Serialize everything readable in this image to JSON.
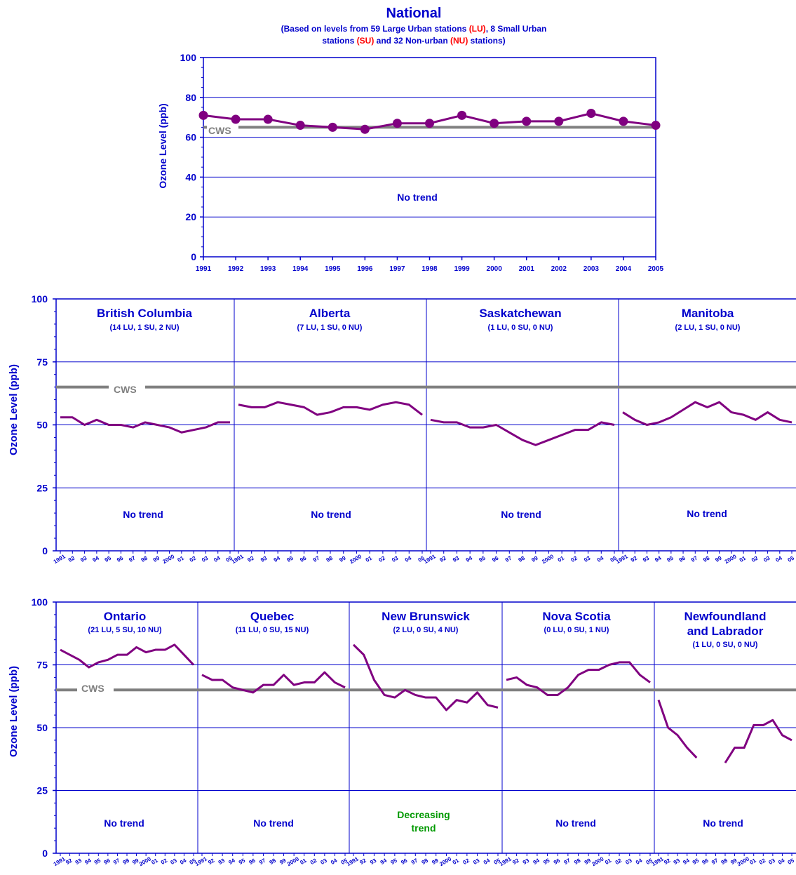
{
  "national": {
    "title": "National",
    "subtitle_1": {
      "p1": "(Based on levels from 59 Large Urban stations ",
      "p2": "(LU)",
      "p3": ", 8 Small Urban"
    },
    "subtitle_2": {
      "p1": "stations ",
      "p2": "(SU)",
      "p3": " and 32 Non-urban ",
      "p4": "(NU)",
      "p5": " stations)"
    }
  },
  "cws_label": "CWS",
  "trend_labels": {
    "no_trend": "No  trend",
    "decreasing_1": "Decreasing",
    "decreasing_2": "trend"
  },
  "y_axis_label": "Ozone Level (ppb)",
  "colors": {
    "axis": "#0000cc",
    "line": "#800080",
    "cws": "#808080",
    "subset": "#ff0000",
    "decreasing": "#009900"
  },
  "chart_data": [
    {
      "type": "line",
      "id": "national",
      "title": "National",
      "ylabel": "Ozone Level (ppb)",
      "ylim": [
        0,
        100
      ],
      "y_ticks": [
        "0",
        "20",
        "40",
        "60",
        "80",
        "100"
      ],
      "x": [
        "1991",
        "1992",
        "1993",
        "1994",
        "1995",
        "1996",
        "1997",
        "1998",
        "1999",
        "2000",
        "2001",
        "2002",
        "2003",
        "2004",
        "2005"
      ],
      "values": [
        71,
        69,
        69,
        66,
        65,
        64,
        67,
        67,
        71,
        67,
        68,
        68,
        72,
        68,
        66
      ],
      "markers": true,
      "cws": 65,
      "annotation": "No  trend",
      "grid": true
    },
    {
      "type": "line",
      "id": "western_provinces",
      "ylabel": "Ozone Level (ppb)",
      "ylim": [
        0,
        100
      ],
      "y_ticks": [
        "0",
        "25",
        "50",
        "75",
        "100"
      ],
      "x_ticks": [
        "1991",
        "92",
        "93",
        "94",
        "95",
        "96",
        "97",
        "98",
        "99",
        "2000",
        "01",
        "02",
        "03",
        "04",
        "05"
      ],
      "cws": 65,
      "grid": true,
      "panels": [
        {
          "name": "British Columbia",
          "stations": "(14 LU, 1 SU, 2 NU)",
          "trend": "No  trend",
          "values": [
            53,
            53,
            50,
            52,
            50,
            50,
            49,
            51,
            50,
            49,
            47,
            48,
            49,
            51,
            51
          ]
        },
        {
          "name": "Alberta",
          "stations": "(7 LU, 1 SU, 0 NU)",
          "trend": "No  trend",
          "values": [
            58,
            57,
            57,
            59,
            58,
            57,
            54,
            55,
            57,
            57,
            56,
            58,
            59,
            58,
            54
          ]
        },
        {
          "name": "Saskatchewan",
          "stations": "(1 LU, 0 SU, 0 NU)",
          "trend": "No  trend",
          "values": [
            52,
            51,
            51,
            49,
            49,
            50,
            47,
            44,
            42,
            44,
            46,
            48,
            48,
            51,
            50
          ]
        },
        {
          "name": "Manitoba",
          "stations": "(2 LU, 1 SU, 0 NU)",
          "trend": "No  trend",
          "values": [
            55,
            52,
            50,
            51,
            53,
            56,
            59,
            57,
            59,
            55,
            54,
            52,
            55,
            52,
            51
          ]
        }
      ]
    },
    {
      "type": "line",
      "id": "eastern_provinces",
      "ylabel": "Ozone Level (ppb)",
      "ylim": [
        0,
        100
      ],
      "y_ticks": [
        "0",
        "25",
        "50",
        "75",
        "100"
      ],
      "x_ticks": [
        "1991",
        "92",
        "93",
        "94",
        "95",
        "96",
        "97",
        "98",
        "99",
        "2000",
        "01",
        "02",
        "03",
        "04",
        "05"
      ],
      "cws": 65,
      "grid": true,
      "panels": [
        {
          "name": "Ontario",
          "stations": "(21 LU, 5 SU, 10 NU)",
          "trend": "No  trend",
          "values": [
            81,
            79,
            77,
            74,
            76,
            77,
            79,
            79,
            82,
            80,
            81,
            81,
            83,
            79,
            75
          ]
        },
        {
          "name": "Quebec",
          "stations": "(11 LU, 0 SU, 15 NU)",
          "trend": "No  trend",
          "values": [
            71,
            69,
            69,
            66,
            65,
            64,
            67,
            67,
            71,
            67,
            68,
            68,
            72,
            68,
            66
          ]
        },
        {
          "name": "New Brunswick",
          "stations": "(2 LU, 0 SU, 4 NU)",
          "trend": "Decreasing trend",
          "values": [
            83,
            79,
            69,
            63,
            62,
            65,
            63,
            62,
            62,
            57,
            61,
            60,
            64,
            59,
            58
          ]
        },
        {
          "name": "Nova Scotia",
          "stations": "(0 LU, 0 SU, 1 NU)",
          "trend": "No  trend",
          "values": [
            69,
            70,
            67,
            66,
            63,
            63,
            66,
            71,
            73,
            73,
            75,
            76,
            76,
            71,
            68
          ]
        },
        {
          "name": "Newfoundland and Labrador",
          "stations": "(1 LU, 0 SU, 0 NU)",
          "trend": "No  trend",
          "values": [
            61,
            50,
            47,
            42,
            38,
            null,
            null,
            36,
            42,
            42,
            51,
            51,
            53,
            47,
            45
          ]
        }
      ]
    }
  ],
  "panel_text": {
    "bc": {
      "name": "British Columbia",
      "stations": "(14 LU, 1 SU, 2 NU)"
    },
    "ab": {
      "name": "Alberta",
      "stations": "(7 LU, 1 SU, 0 NU)"
    },
    "sk": {
      "name": "Saskatchewan",
      "stations": "(1 LU, 0 SU, 0 NU)"
    },
    "mb": {
      "name": "Manitoba",
      "stations": "(2 LU, 1 SU, 0 NU)"
    },
    "on": {
      "name": "Ontario",
      "stations": "(21 LU, 5 SU, 10 NU)"
    },
    "qc": {
      "name": "Quebec",
      "stations": "(11 LU, 0 SU, 15 NU)"
    },
    "nb": {
      "name": "New Brunswick",
      "stations": "(2 LU, 0 SU, 4 NU)"
    },
    "ns": {
      "name": "Nova Scotia",
      "stations": "(0 LU, 0 SU, 1 NU)"
    },
    "nl": {
      "name_1": "Newfoundland",
      "name_2": "and Labrador",
      "stations": "(1 LU, 0 SU, 0 NU)"
    }
  }
}
